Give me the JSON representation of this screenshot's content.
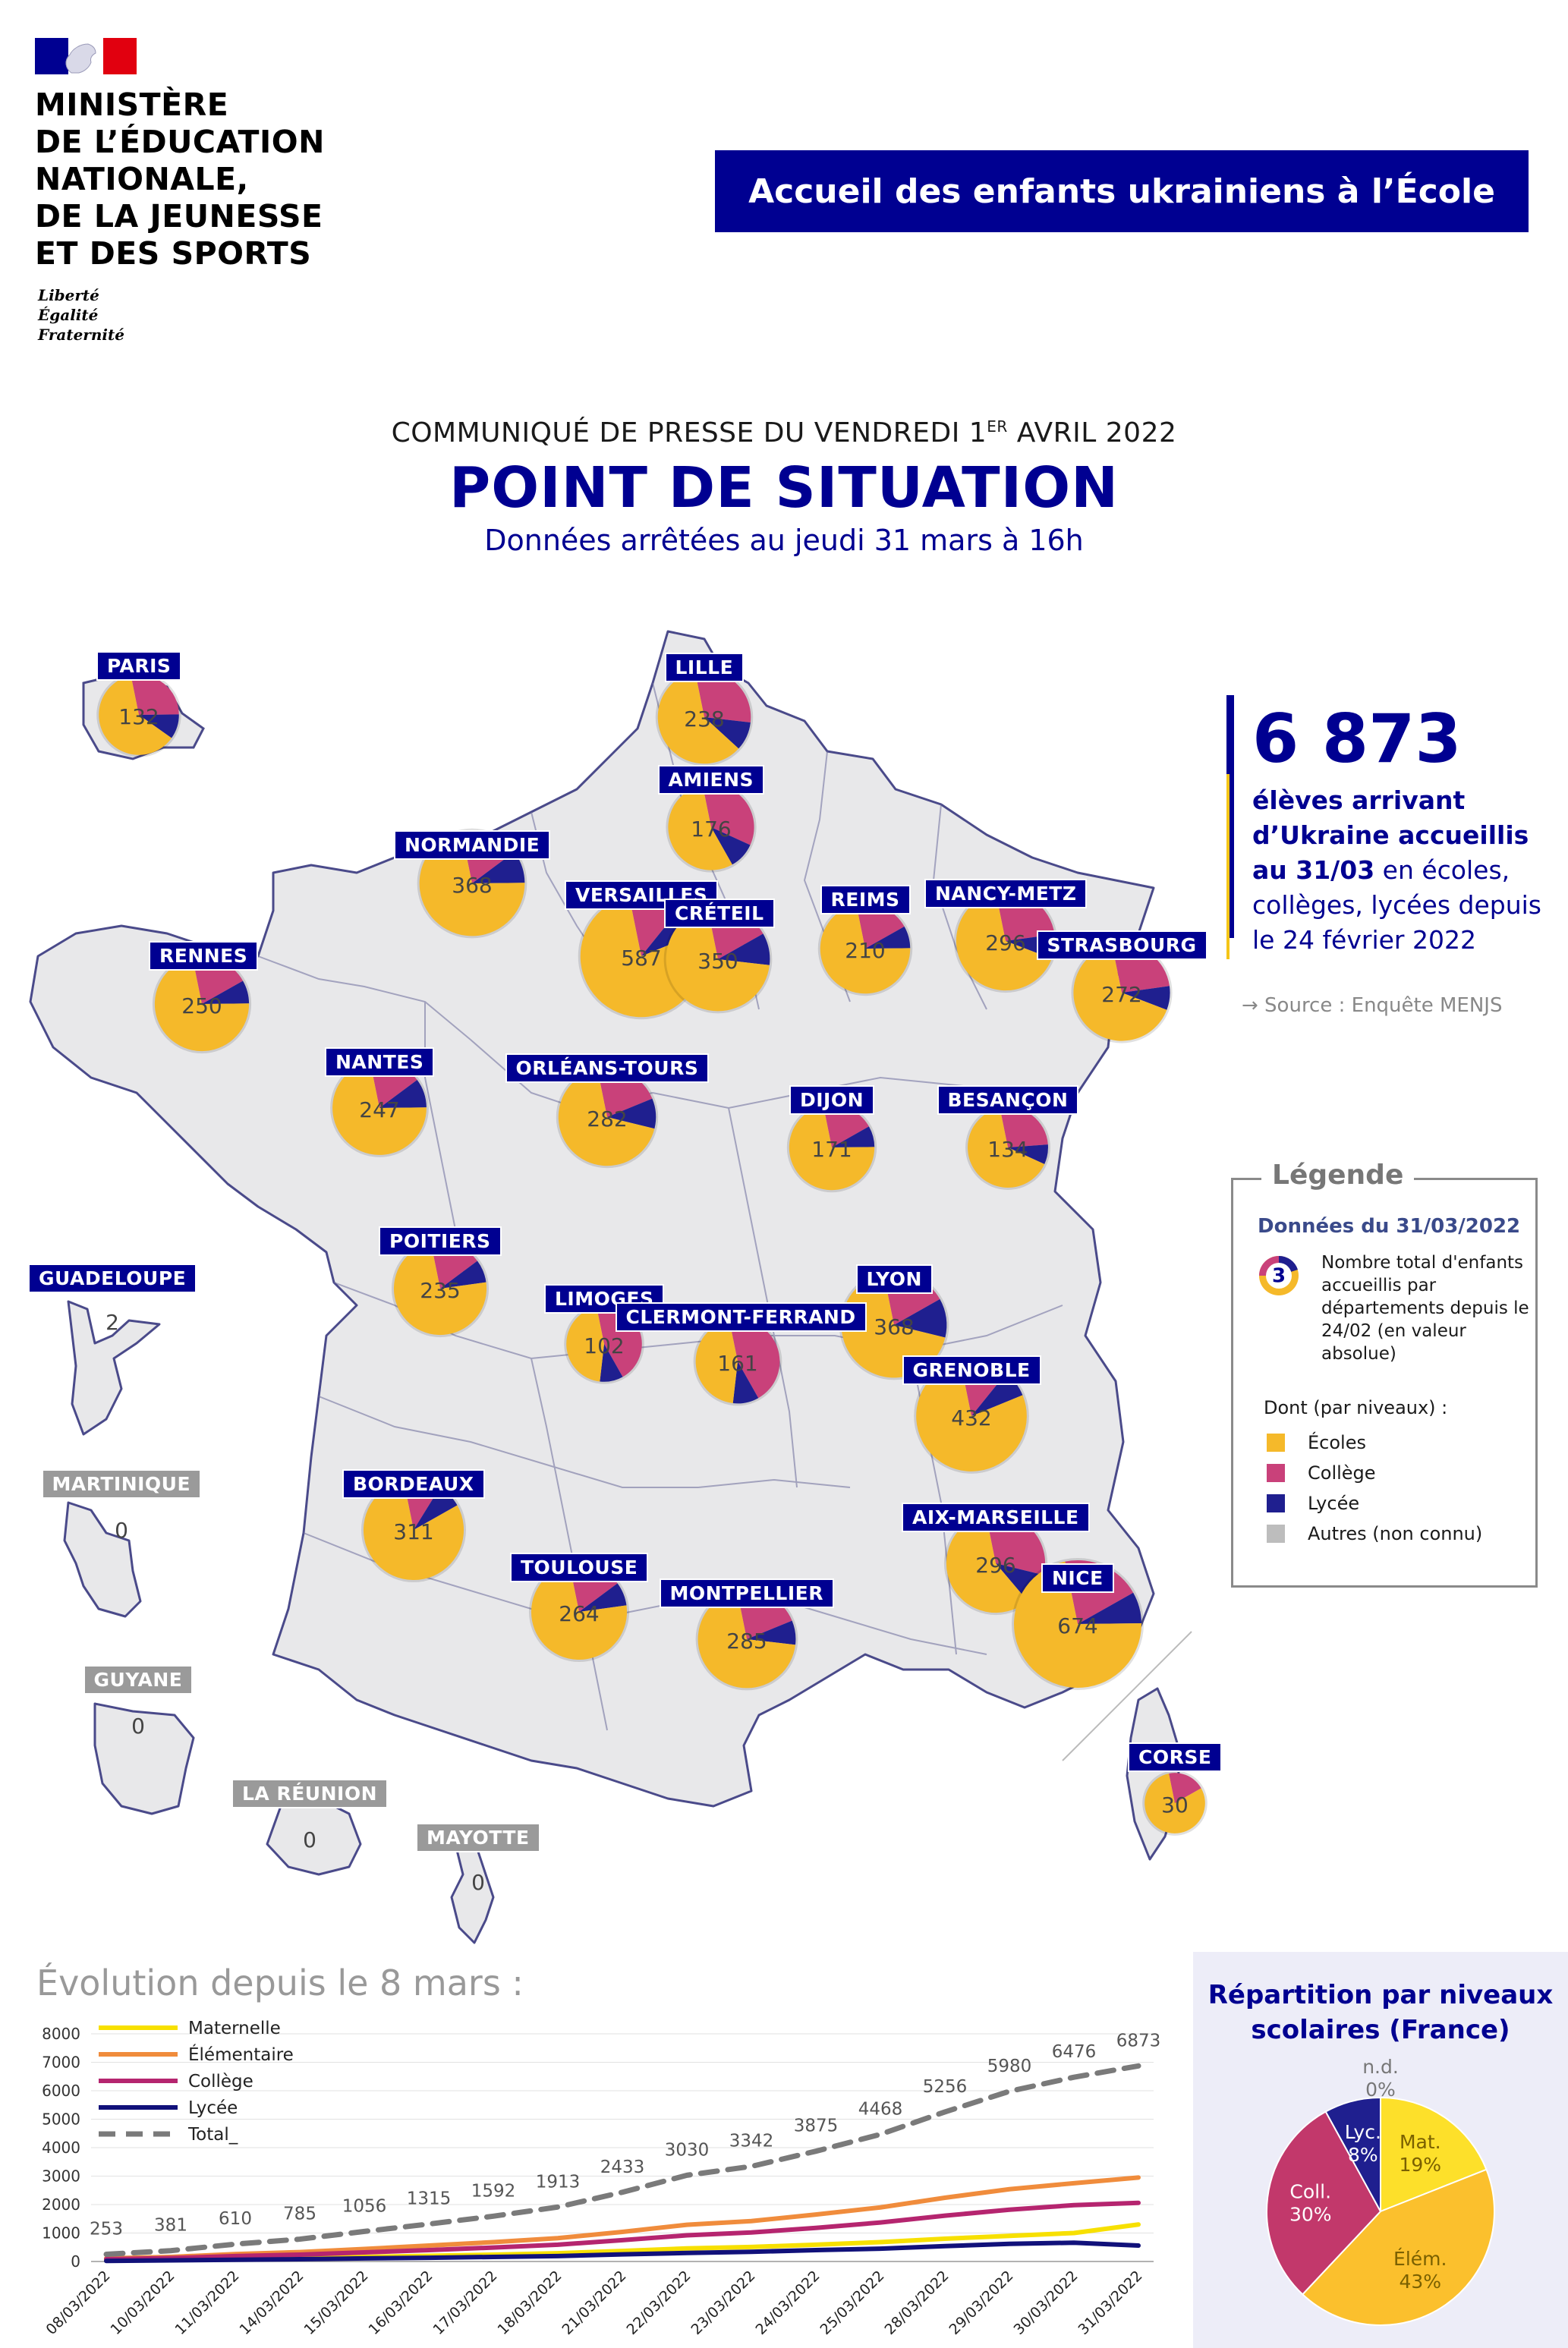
{
  "header": {
    "ministry_lines": [
      "MINISTÈRE",
      "DE L’ÉDUCATION",
      "NATIONALE,",
      "DE LA JEUNESSE",
      "ET DES SPORTS"
    ],
    "motto_lines": [
      "Liberté",
      "Égalité",
      "Fraternité"
    ],
    "banner": "Accueil des enfants ukrainiens à l’École",
    "press_main": "COMMUNIQUÉ DE PRESSE DU VENDREDI 1",
    "press_sup": "ER",
    "press_end": " AVRIL 2022",
    "title": "POINT DE SITUATION",
    "subtitle": "Données arrêtées au jeudi 31 mars à 16h"
  },
  "colors": {
    "ecoles": "#f5b92a",
    "college": "#c9417a",
    "lycee": "#1f1f8f",
    "autres": "#bdbdbd",
    "brand": "#000091"
  },
  "map": {
    "regions": [
      {
        "name": "PARIS",
        "total": 132,
        "ecoles": 0.62,
        "college": 0.28,
        "lycee": 0.1
      },
      {
        "name": "LILLE",
        "total": 238,
        "ecoles": 0.6,
        "college": 0.3,
        "lycee": 0.1
      },
      {
        "name": "AMIENS",
        "total": 176,
        "ecoles": 0.55,
        "college": 0.35,
        "lycee": 0.1
      },
      {
        "name": "NORMANDIE",
        "total": 368,
        "ecoles": 0.72,
        "college": 0.18,
        "lycee": 0.1
      },
      {
        "name": "VERSAILLES",
        "total": 587,
        "ecoles": 0.78,
        "college": 0.14,
        "lycee": 0.08
      },
      {
        "name": "CRÉTEIL",
        "total": 350,
        "ecoles": 0.7,
        "college": 0.2,
        "lycee": 0.1
      },
      {
        "name": "REIMS",
        "total": 210,
        "ecoles": 0.72,
        "college": 0.2,
        "lycee": 0.08
      },
      {
        "name": "NANCY-METZ",
        "total": 296,
        "ecoles": 0.66,
        "college": 0.26,
        "lycee": 0.08
      },
      {
        "name": "STRASBOURG",
        "total": 272,
        "ecoles": 0.66,
        "college": 0.26,
        "lycee": 0.08
      },
      {
        "name": "RENNES",
        "total": 250,
        "ecoles": 0.72,
        "college": 0.2,
        "lycee": 0.08
      },
      {
        "name": "NANTES",
        "total": 247,
        "ecoles": 0.72,
        "college": 0.18,
        "lycee": 0.1
      },
      {
        "name": "ORLÉANS-TOURS",
        "total": 282,
        "ecoles": 0.68,
        "college": 0.22,
        "lycee": 0.1
      },
      {
        "name": "DIJON",
        "total": 171,
        "ecoles": 0.72,
        "college": 0.2,
        "lycee": 0.08
      },
      {
        "name": "BESANÇON",
        "total": 134,
        "ecoles": 0.65,
        "college": 0.27,
        "lycee": 0.08
      },
      {
        "name": "POITIERS",
        "total": 235,
        "ecoles": 0.74,
        "college": 0.18,
        "lycee": 0.08
      },
      {
        "name": "LIMOGES",
        "total": 102,
        "ecoles": 0.45,
        "college": 0.45,
        "lycee": 0.1
      },
      {
        "name": "CLERMONT-FERRAND",
        "total": 161,
        "ecoles": 0.45,
        "college": 0.45,
        "lycee": 0.1
      },
      {
        "name": "LYON",
        "total": 368,
        "ecoles": 0.68,
        "college": 0.2,
        "lycee": 0.12
      },
      {
        "name": "GRENOBLE",
        "total": 432,
        "ecoles": 0.78,
        "college": 0.14,
        "lycee": 0.08
      },
      {
        "name": "BORDEAUX",
        "total": 311,
        "ecoles": 0.8,
        "college": 0.12,
        "lycee": 0.08
      },
      {
        "name": "TOULOUSE",
        "total": 264,
        "ecoles": 0.74,
        "college": 0.18,
        "lycee": 0.08
      },
      {
        "name": "MONTPELLIER",
        "total": 285,
        "ecoles": 0.7,
        "college": 0.22,
        "lycee": 0.08
      },
      {
        "name": "AIX-MARSEILLE",
        "total": 296,
        "ecoles": 0.58,
        "college": 0.32,
        "lycee": 0.1
      },
      {
        "name": "NICE",
        "total": 674,
        "ecoles": 0.72,
        "college": 0.2,
        "lycee": 0.08
      },
      {
        "name": "CORSE",
        "total": 30,
        "ecoles": 0.8,
        "college": 0.2,
        "lycee": 0.0
      }
    ],
    "overseas": [
      {
        "name": "GUADELOUPE",
        "total": 2
      },
      {
        "name": "MARTINIQUE",
        "total": 0
      },
      {
        "name": "GUYANE",
        "total": 0
      },
      {
        "name": "LA RÉUNION",
        "total": 0
      },
      {
        "name": "MAYOTTE",
        "total": 0
      }
    ]
  },
  "key_figure": {
    "number": "6 873",
    "line1": "élèves arrivant",
    "line2": "d’Ukraine accueillis",
    "line3_bold": "au 31/03",
    "line3_rest": " en écoles,",
    "line4": "collèges, lycées depuis",
    "line5": "le 24 février 2022",
    "source": "→ Source : Enquête MENJS"
  },
  "legend": {
    "title": "Légende",
    "date": "Données du 31/03/2022",
    "sample_value": "3",
    "description": "Nombre total d'enfants accueillis par départements depuis le 24/02 (en valeur absolue)",
    "dont": "Dont (par niveaux) :",
    "items": [
      {
        "label": "Écoles",
        "color": "#f5b92a"
      },
      {
        "label": "Collège",
        "color": "#c9417a"
      },
      {
        "label": "Lycée",
        "color": "#1f1f8f"
      },
      {
        "label": "Autres (non connu)",
        "color": "#bdbdbd"
      }
    ]
  },
  "chart_data": [
    {
      "type": "line",
      "title": "Évolution depuis le 8 mars :",
      "x": [
        "08/03/2022",
        "10/03/2022",
        "11/03/2022",
        "14/03/2022",
        "15/03/2022",
        "16/03/2022",
        "17/03/2022",
        "18/03/2022",
        "21/03/2022",
        "22/03/2022",
        "23/03/2022",
        "24/03/2022",
        "25/03/2022",
        "28/03/2022",
        "29/03/2022",
        "30/03/2022",
        "31/03/2022"
      ],
      "ylim": [
        0,
        8000
      ],
      "yticks": [
        0,
        1000,
        2000,
        3000,
        4000,
        5000,
        6000,
        7000,
        8000
      ],
      "grid": true,
      "legend": "top-left",
      "series": [
        {
          "name": "Maternelle",
          "color": "#f7e000",
          "values": [
            30,
            50,
            90,
            120,
            160,
            200,
            240,
            290,
            370,
            460,
            510,
            590,
            680,
            800,
            900,
            1000,
            1300
          ]
        },
        {
          "name": "Élémentaire",
          "color": "#f08c3c",
          "values": [
            110,
            160,
            260,
            330,
            440,
            560,
            680,
            820,
            1040,
            1290,
            1420,
            1650,
            1900,
            2240,
            2540,
            2750,
            2950
          ]
        },
        {
          "name": "Collège",
          "color": "#b5256f",
          "values": [
            80,
            120,
            190,
            240,
            320,
            400,
            490,
            590,
            750,
            920,
            1020,
            1180,
            1370,
            1610,
            1820,
            1980,
            2060
          ]
        },
        {
          "name": "Lycée",
          "color": "#11117a",
          "values": [
            20,
            40,
            60,
            80,
            110,
            130,
            160,
            190,
            250,
            300,
            340,
            400,
            450,
            540,
            620,
            660,
            560
          ]
        },
        {
          "name": "Total_",
          "color": "#7a7a7a",
          "dashed": true,
          "values": [
            253,
            381,
            610,
            785,
            1056,
            1315,
            1592,
            1913,
            2433,
            3030,
            3342,
            3875,
            4468,
            5256,
            5980,
            6476,
            6873
          ]
        }
      ],
      "data_labels": [
        "253",
        "381",
        "610",
        "785",
        "1056",
        "1315",
        "1592",
        "1913",
        "2433",
        "3030",
        "3342",
        "3875",
        "4468",
        "5256",
        "5980",
        "6476",
        "6873"
      ]
    },
    {
      "type": "pie",
      "title": "Répartition par niveaux scolaires (France)",
      "slices": [
        {
          "label": "Mat.",
          "value": 19,
          "text": "19%",
          "color": "#fde02a"
        },
        {
          "label": "Élém.",
          "value": 43,
          "text": "43%",
          "color": "#fbc02d"
        },
        {
          "label": "Coll.",
          "value": 30,
          "text": "30%",
          "color": "#c2386b"
        },
        {
          "label": "Lyc.",
          "value": 8,
          "text": "8%",
          "color": "#1f1f8f"
        },
        {
          "label": "n.d.",
          "value": 0,
          "text": "0%",
          "color": "#bdbdbd"
        }
      ]
    }
  ]
}
